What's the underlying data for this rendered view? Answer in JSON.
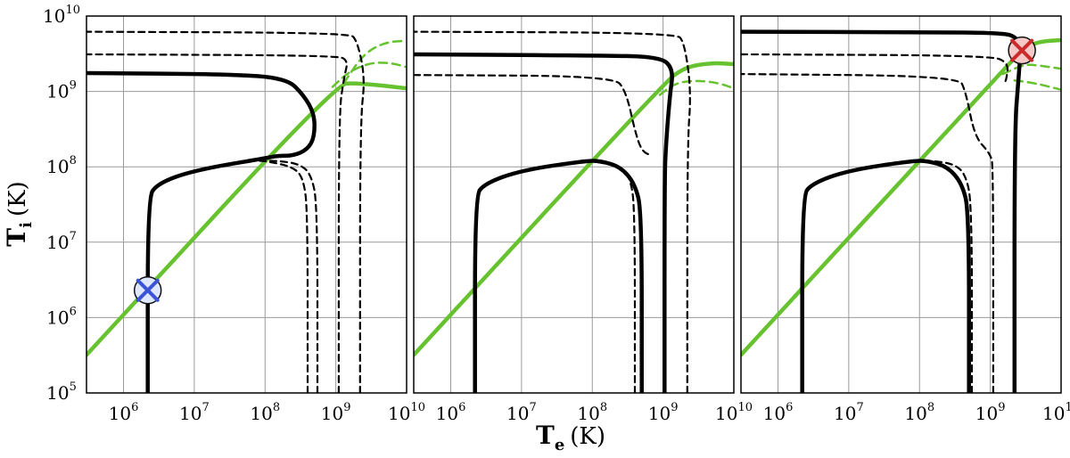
{
  "chart_data": {
    "type": "line",
    "scale": {
      "x": "log",
      "y": "log"
    },
    "xlim": [
      300000,
      10000000000
    ],
    "ylim": [
      100000,
      10000000000
    ],
    "xlabel": {
      "main": "T",
      "sub": "e",
      "unit": "(K)"
    },
    "ylabel": {
      "main": "T",
      "sub": "i",
      "unit": "(K)"
    },
    "xticks": [
      {
        "base": "10",
        "exp": "6"
      },
      {
        "base": "10",
        "exp": "7"
      },
      {
        "base": "10",
        "exp": "8"
      },
      {
        "base": "10",
        "exp": "9"
      },
      {
        "base": "10",
        "exp": "10"
      }
    ],
    "yticks": [
      {
        "base": "10",
        "exp": "5"
      },
      {
        "base": "10",
        "exp": "6"
      },
      {
        "base": "10",
        "exp": "7"
      },
      {
        "base": "10",
        "exp": "8"
      },
      {
        "base": "10",
        "exp": "9"
      },
      {
        "base": "10",
        "exp": "10"
      }
    ],
    "grid": true,
    "colors": {
      "solid": "#000000",
      "dashed": "#000000",
      "equilibrium": "#66c22e",
      "blue_marker": "#3b53d6",
      "red_marker": "#cc2a2a"
    },
    "panels": [
      {
        "name": "panel-1",
        "series": [
          {
            "name": "equilibrium",
            "style": "solid-green",
            "points": [
              [
                300000,
                320000
              ],
              [
                1000000000,
                1250000000
              ],
              [
                2000000000,
                1300000000
              ],
              [
                10000000000,
                1100000000
              ]
            ]
          },
          {
            "name": "branch-1",
            "style": "dashed-green",
            "points": [
              [
                900000000,
                1150000000
              ],
              [
                1500000000,
                1800000000
              ],
              [
                3000000000,
                2400000000
              ],
              [
                6000000000,
                2400000000
              ],
              [
                10000000000,
                2100000000
              ]
            ]
          },
          {
            "name": "branch-2",
            "style": "dashed-green",
            "points": [
              [
                1300000000,
                1300000000
              ],
              [
                2500000000,
                3200000000
              ],
              [
                5000000000,
                4500000000
              ],
              [
                10000000000,
                4700000000
              ]
            ]
          },
          {
            "name": "solution",
            "style": "solid-black",
            "points": [
              [
                2200000,
                100000
              ],
              [
                2200000,
                38000000
              ],
              [
                3000000,
                60000000
              ],
              [
                10000000,
                90000000
              ],
              [
                100000000,
                130000000
              ],
              [
                150000000,
                140000000
              ],
              [
                250000000,
                140000000
              ],
              [
                400000000,
                170000000
              ],
              [
                500000000,
                250000000
              ],
              [
                500000000,
                500000000
              ],
              [
                350000000,
                900000000
              ],
              [
                200000000,
                1500000000
              ],
              [
                30000000,
                1700000000
              ],
              [
                300000,
                1750000000
              ]
            ]
          },
          {
            "name": "dashed-1",
            "style": "dashed-black",
            "points": [
              [
                400000000,
                100000
              ],
              [
                400000000,
                25000000
              ],
              [
                350000000,
                70000000
              ],
              [
                250000000,
                100000000
              ],
              [
                100000000,
                120000000
              ],
              [
                70000000,
                120000000
              ]
            ]
          },
          {
            "name": "dashed-2",
            "style": "dashed-black",
            "points": [
              [
                550000000,
                100000
              ],
              [
                550000000,
                30000000
              ],
              [
                450000000,
                80000000
              ],
              [
                300000000,
                110000000
              ],
              [
                150000000,
                120000000
              ],
              [
                90000000,
                120000000
              ]
            ]
          },
          {
            "name": "dashed-3",
            "style": "dashed-black",
            "points": [
              [
                1100000000,
                100000
              ],
              [
                1100000000,
                500000000
              ],
              [
                1300000000,
                1500000000
              ],
              [
                1500000000,
                2600000000
              ],
              [
                1000000000,
                3000000000
              ],
              [
                300000,
                3100000000
              ]
            ]
          },
          {
            "name": "dashed-4",
            "style": "dashed-black",
            "points": [
              [
                2200000000,
                100000
              ],
              [
                2200000000,
                400000000
              ],
              [
                2600000000,
                1500000000
              ],
              [
                2000000000,
                4800000000
              ],
              [
                1500000000,
                6000000000
              ],
              [
                300000,
                6200000000
              ]
            ]
          }
        ],
        "marker": {
          "name": "blue-cross-marker",
          "color": "blue",
          "point": [
            2200000,
            2300000
          ]
        }
      },
      {
        "name": "panel-2",
        "series": [
          {
            "name": "equilibrium",
            "style": "solid-green",
            "points": [
              [
                300000,
                320000
              ],
              [
                1000000000,
                1250000000
              ],
              [
                2000000000,
                2100000000
              ],
              [
                5000000000,
                2400000000
              ],
              [
                10000000000,
                2300000000
              ]
            ]
          },
          {
            "name": "branch-1",
            "style": "dashed-green",
            "points": [
              [
                900000000,
                900000000
              ],
              [
                1500000000,
                1300000000
              ],
              [
                3000000000,
                1400000000
              ],
              [
                6000000000,
                1300000000
              ],
              [
                10000000000,
                1100000000
              ]
            ]
          },
          {
            "name": "solution-low",
            "style": "solid-black",
            "points": [
              [
                2200000,
                100000
              ],
              [
                2200000,
                40000000
              ],
              [
                3000000,
                60000000
              ],
              [
                10000000,
                90000000
              ],
              [
                80000000,
                120000000
              ],
              [
                130000000,
                120000000
              ],
              [
                250000000,
                100000000
              ],
              [
                400000000,
                60000000
              ],
              [
                500000000,
                25000000
              ],
              [
                500000000,
                100000
              ]
            ]
          },
          {
            "name": "solution-high",
            "style": "solid-black",
            "points": [
              [
                1050000000,
                100000
              ],
              [
                1050000000,
                70000000
              ],
              [
                1100000000,
                200000000
              ],
              [
                1250000000,
                900000000
              ],
              [
                1400000000,
                2000000000
              ],
              [
                900000000,
                2900000000
              ],
              [
                100000000,
                3000000000
              ],
              [
                300000,
                3100000000
              ]
            ]
          },
          {
            "name": "dashed-1",
            "style": "dashed-black",
            "points": [
              [
                400000000,
                100000
              ],
              [
                400000000,
                25000000
              ],
              [
                350000000,
                70000000
              ],
              [
                250000000,
                100000000
              ],
              [
                100000000,
                120000000
              ],
              [
                70000000,
                120000000
              ]
            ]
          },
          {
            "name": "dashed-2",
            "style": "dashed-black",
            "points": [
              [
                2200000000,
                100000
              ],
              [
                2200000000,
                200000000
              ],
              [
                2500000000,
                1000000000
              ],
              [
                2000000000,
                4500000000
              ],
              [
                1500000000,
                6000000000
              ],
              [
                300000,
                6200000000
              ]
            ]
          },
          {
            "name": "dashed-3",
            "style": "dashed-black",
            "points": [
              [
                300000,
                1650000000
              ],
              [
                200000000,
                1600000000
              ],
              [
                300000000,
                1000000000
              ],
              [
                400000000,
                300000000
              ],
              [
                500000000,
                160000000
              ],
              [
                700000000,
                140000000
              ]
            ]
          }
        ]
      },
      {
        "name": "panel-3",
        "series": [
          {
            "name": "equilibrium",
            "style": "solid-green",
            "points": [
              [
                300000,
                320000
              ],
              [
                1000000000,
                1250000000
              ],
              [
                3000000000,
                3800000000
              ],
              [
                5000000000,
                4600000000
              ],
              [
                10000000000,
                4800000000
              ]
            ]
          },
          {
            "name": "branch-1",
            "style": "dashed-green",
            "points": [
              [
                1500000000,
                1700000000
              ],
              [
                3000000000,
                2300000000
              ],
              [
                5000000000,
                2200000000
              ],
              [
                10000000000,
                2000000000
              ]
            ]
          },
          {
            "name": "branch-2",
            "style": "dashed-green",
            "points": [
              [
                2200000000,
                1400000000
              ],
              [
                4000000000,
                1300000000
              ],
              [
                7000000000,
                1150000000
              ],
              [
                10000000000,
                1050000000
              ]
            ]
          },
          {
            "name": "solution-low",
            "style": "solid-black",
            "points": [
              [
                2200000,
                100000
              ],
              [
                2200000,
                40000000
              ],
              [
                3000000,
                60000000
              ],
              [
                10000000,
                90000000
              ],
              [
                80000000,
                120000000
              ],
              [
                130000000,
                120000000
              ],
              [
                250000000,
                100000000
              ],
              [
                400000000,
                60000000
              ],
              [
                500000000,
                25000000
              ],
              [
                500000000,
                100000
              ]
            ]
          },
          {
            "name": "solution-high",
            "style": "solid-black",
            "points": [
              [
                2200000000,
                100000
              ],
              [
                2200000000,
                300000000
              ],
              [
                2500000000,
                1500000000
              ],
              [
                2700000000,
                3500000000
              ],
              [
                2400000000,
                5200000000
              ],
              [
                1500000000,
                6000000000
              ],
              [
                100000000,
                6100000000
              ],
              [
                300000,
                6200000000
              ]
            ]
          },
          {
            "name": "dashed-1",
            "style": "dashed-black",
            "points": [
              [
                550000000,
                100000
              ],
              [
                550000000,
                30000000
              ],
              [
                450000000,
                80000000
              ],
              [
                300000000,
                110000000
              ],
              [
                150000000,
                120000000
              ],
              [
                90000000,
                120000000
              ]
            ]
          },
          {
            "name": "dashed-2",
            "style": "dashed-black",
            "points": [
              [
                1100000000,
                100000
              ],
              [
                1100000000,
                100000000
              ],
              [
                1000000000,
                150000000
              ],
              [
                600000000,
                250000000
              ],
              [
                450000000,
                1000000000
              ],
              [
                350000000,
                1600000000
              ],
              [
                300000,
                1700000000
              ]
            ]
          },
          {
            "name": "dashed-3",
            "style": "dashed-black",
            "points": [
              [
                300000,
                3100000000
              ],
              [
                1000000000,
                3000000000
              ],
              [
                1800000000,
                2400000000
              ],
              [
                1700000000,
                1500000000
              ],
              [
                1600000000,
                1300000000
              ]
            ]
          }
        ],
        "marker": {
          "name": "red-cross-marker",
          "color": "red",
          "point": [
            2800000000,
            3500000000
          ]
        }
      }
    ]
  }
}
